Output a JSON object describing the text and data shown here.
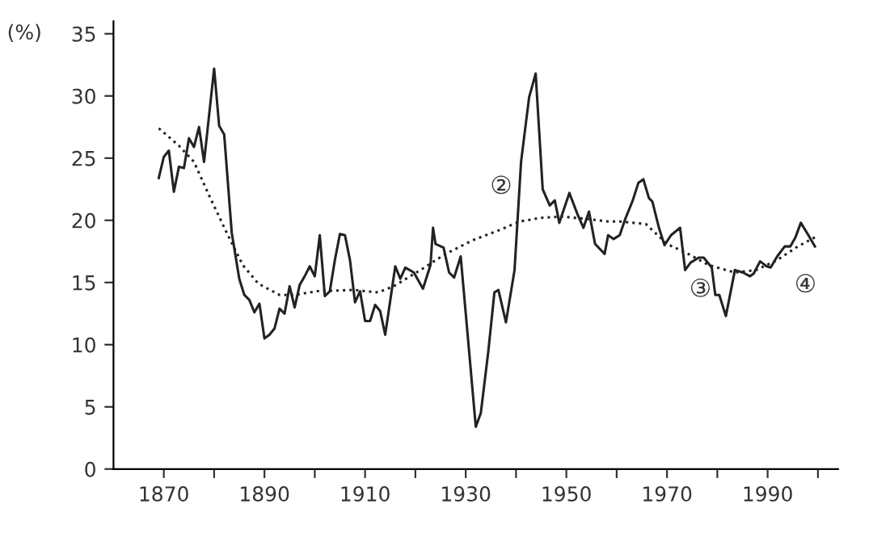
{
  "chart_data": {
    "type": "line",
    "ylabel": "(%)",
    "xlim": [
      1860,
      2004
    ],
    "ylim": [
      0,
      36
    ],
    "xticks": [
      1870,
      {
        "value": 1880,
        "label": null
      },
      1890,
      {
        "value": 1900,
        "label": null
      },
      1910,
      {
        "value": 1920,
        "label": null
      },
      1930,
      {
        "value": 1940,
        "label": null
      },
      1950,
      {
        "value": 1960,
        "label": null
      },
      1970,
      {
        "value": 1980,
        "label": null
      },
      1990,
      {
        "value": 2000,
        "label": null
      }
    ],
    "yticks": [
      0,
      5,
      10,
      15,
      20,
      25,
      30,
      35
    ],
    "grid": false,
    "series": [
      {
        "color": "#222222",
        "line_style": "solid",
        "x": [
          1869,
          1870,
          1871,
          1872,
          1873,
          1874,
          1875,
          1876,
          1877,
          1878,
          1880,
          1881,
          1882,
          1883.5,
          1885,
          1886,
          1887,
          1888,
          1889,
          1890,
          1891,
          1892,
          1893,
          1894,
          1895,
          1896,
          1897,
          1898,
          1899,
          1900,
          1901,
          1902,
          1903,
          1904,
          1905,
          1906,
          1907,
          1908,
          1909,
          1910,
          1911,
          1912,
          1913,
          1914,
          1916,
          1917,
          1918,
          1919.7,
          1921.5,
          1923,
          1923.5,
          1924,
          1925.6,
          1926.7,
          1927.7,
          1929,
          1932,
          1933,
          1934.5,
          1935.7,
          1936.5,
          1938,
          1939.7,
          1941,
          1942.6,
          1943.9,
          1945.3,
          1946.7,
          1947.7,
          1948.6,
          1950.6,
          1952.2,
          1953.4,
          1954.5,
          1955.7,
          1957.6,
          1958.3,
          1959.4,
          1960.6,
          1961.7,
          1963.2,
          1964.3,
          1965.3,
          1966.4,
          1967.1,
          1968.4,
          1969.5,
          1970.8,
          1972.6,
          1973.6,
          1974.7,
          1976.3,
          1977.3,
          1978.9,
          1979.6,
          1980.4,
          1981.7,
          1983.5,
          1985.1,
          1986.5,
          1987.2,
          1988.5,
          1989.8,
          1990.6,
          1991.9,
          1993.4,
          1994.5,
          1995.5,
          1996.6,
          1998.1,
          1999.4
        ],
        "values": [
          23.4,
          25.1,
          25.6,
          22.3,
          24.3,
          24.2,
          26.6,
          25.9,
          27.5,
          24.7,
          32.2,
          27.6,
          26.9,
          19.0,
          15.3,
          14.0,
          13.6,
          12.6,
          13.3,
          10.5,
          10.8,
          11.3,
          12.9,
          12.5,
          14.7,
          13.0,
          14.8,
          15.5,
          16.3,
          15.5,
          18.8,
          13.9,
          14.3,
          16.8,
          18.9,
          18.8,
          16.8,
          13.4,
          14.3,
          11.9,
          11.9,
          13.2,
          12.7,
          10.8,
          16.3,
          15.3,
          16.2,
          15.8,
          14.5,
          16.4,
          19.4,
          18.1,
          17.8,
          15.8,
          15.4,
          17.1,
          3.4,
          4.5,
          9.5,
          14.2,
          14.4,
          11.8,
          16.0,
          24.7,
          29.9,
          31.8,
          22.5,
          21.2,
          21.6,
          19.8,
          22.2,
          20.5,
          19.4,
          20.7,
          18.1,
          17.3,
          18.8,
          18.5,
          18.8,
          20.1,
          21.6,
          23.0,
          23.3,
          21.8,
          21.5,
          19.4,
          18.0,
          18.8,
          19.4,
          16.0,
          16.6,
          17.0,
          17.0,
          16.2,
          14.0,
          14.0,
          12.3,
          16.0,
          15.8,
          15.5,
          15.7,
          16.7,
          16.3,
          16.2,
          17.1,
          17.9,
          17.9,
          18.6,
          19.8,
          18.8,
          17.9
        ]
      },
      {
        "color": "#222222",
        "line_style": "dotted",
        "x": [
          1869,
          1873,
          1876,
          1879,
          1882.5,
          1885.7,
          1888.8,
          1893,
          1896,
          1900.4,
          1907.8,
          1912.6,
          1915.7,
          1921,
          1926,
          1931.4,
          1936.6,
          1940.7,
          1944.9,
          1949,
          1954.3,
          1958.4,
          1960.6,
          1965.8,
          1970,
          1974.2,
          1978.3,
          1983.5,
          1987.7,
          1991.9,
          1996,
          1999.7
        ],
        "values": [
          27.4,
          26.0,
          24.7,
          22.0,
          19.0,
          16.4,
          14.9,
          14.0,
          14.0,
          14.3,
          14.4,
          14.2,
          14.7,
          16.0,
          17.3,
          18.4,
          19.2,
          19.9,
          20.2,
          20.3,
          20.1,
          19.9,
          19.9,
          19.7,
          18.1,
          17.3,
          16.4,
          15.8,
          16.0,
          16.8,
          17.9,
          18.7
        ]
      }
    ],
    "annotations": [
      "②",
      "③",
      "④"
    ]
  }
}
